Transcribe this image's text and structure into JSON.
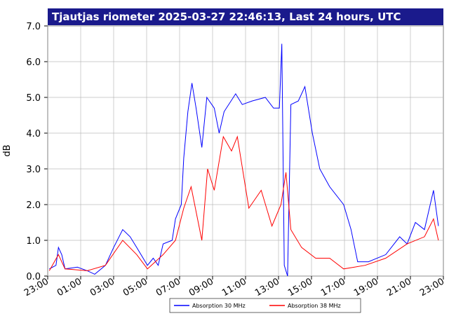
{
  "chart_data": {
    "type": "line",
    "title": "Tjautjas riometer 2025-03-27 22:46:13, Last 24 hours, UTC",
    "y_label": "dB",
    "xlim": [
      0,
      24
    ],
    "xticks": [
      {
        "value": 0,
        "label": "23:00"
      },
      {
        "value": 2,
        "label": "01:00"
      },
      {
        "value": 4,
        "label": "03:00"
      },
      {
        "value": 6,
        "label": "05:00"
      },
      {
        "value": 8,
        "label": "07:00"
      },
      {
        "value": 10,
        "label": "09:00"
      },
      {
        "value": 12,
        "label": "11:00"
      },
      {
        "value": 14,
        "label": "13:00"
      },
      {
        "value": 16,
        "label": "15:00"
      },
      {
        "value": 18,
        "label": "17:00"
      },
      {
        "value": 20,
        "label": "19:00"
      },
      {
        "value": 22,
        "label": "21:00"
      },
      {
        "value": 24,
        "label": "23:00"
      }
    ],
    "ylim": [
      0,
      7
    ],
    "yticks": [
      {
        "value": 0,
        "label": "0.0"
      },
      {
        "value": 1,
        "label": "1.0"
      },
      {
        "value": 2,
        "label": "2.0"
      },
      {
        "value": 3,
        "label": "3.0"
      },
      {
        "value": 4,
        "label": "4.0"
      },
      {
        "value": 5,
        "label": "5.0"
      },
      {
        "value": 6,
        "label": "6.0"
      },
      {
        "value": 7,
        "label": "7.0"
      }
    ],
    "grid": true,
    "series": [
      {
        "name": "Absorption 30 MHz",
        "color": "#0000ff",
        "x": [
          0.1,
          0.5,
          0.65,
          0.85,
          1.05,
          1.8,
          2.4,
          2.85,
          3.5,
          4.0,
          4.55,
          5.0,
          5.4,
          6.05,
          6.4,
          6.7,
          7.0,
          7.55,
          7.75,
          8.1,
          8.25,
          8.5,
          8.75,
          9.0,
          9.35,
          9.65,
          10.1,
          10.4,
          10.7,
          11.4,
          11.8,
          12.4,
          13.2,
          13.7,
          14.05,
          14.2,
          14.35,
          14.55,
          14.75,
          15.2,
          15.6,
          16.05,
          16.5,
          17.1,
          17.95,
          18.4,
          18.8,
          19.45,
          20.5,
          21.35,
          21.8,
          22.3,
          22.85,
          23.4,
          23.7
        ],
        "values": [
          0.2,
          0.3,
          0.8,
          0.6,
          0.2,
          0.25,
          0.15,
          0.05,
          0.3,
          0.8,
          1.3,
          1.1,
          0.8,
          0.3,
          0.5,
          0.3,
          0.9,
          1.0,
          1.6,
          2.0,
          3.3,
          4.6,
          5.4,
          4.7,
          3.6,
          5.0,
          4.7,
          4.0,
          4.6,
          5.1,
          4.8,
          4.9,
          5.0,
          4.7,
          4.7,
          6.5,
          0.3,
          0.0,
          4.8,
          4.9,
          5.3,
          4.0,
          3.0,
          2.5,
          2.0,
          1.3,
          0.4,
          0.4,
          0.6,
          1.1,
          0.9,
          1.5,
          1.3,
          2.4,
          1.4
        ]
      },
      {
        "name": "Absorption 38 MHz",
        "color": "#ff0000",
        "x": [
          0.1,
          0.65,
          1.05,
          2.4,
          3.5,
          4.55,
          5.4,
          6.05,
          7.0,
          7.75,
          8.25,
          8.7,
          9.35,
          9.7,
          10.1,
          10.65,
          11.15,
          11.5,
          12.2,
          12.95,
          13.6,
          14.15,
          14.45,
          14.75,
          15.4,
          16.25,
          17.1,
          17.95,
          19.25,
          20.5,
          21.8,
          22.85,
          23.4,
          23.7
        ],
        "values": [
          0.15,
          0.6,
          0.2,
          0.15,
          0.3,
          1.0,
          0.6,
          0.2,
          0.6,
          1.0,
          1.9,
          2.5,
          1.0,
          3.0,
          2.4,
          3.9,
          3.5,
          3.9,
          1.9,
          2.4,
          1.4,
          2.0,
          2.9,
          1.3,
          0.8,
          0.5,
          0.5,
          0.2,
          0.3,
          0.5,
          0.9,
          1.1,
          1.6,
          1.0
        ]
      }
    ]
  }
}
